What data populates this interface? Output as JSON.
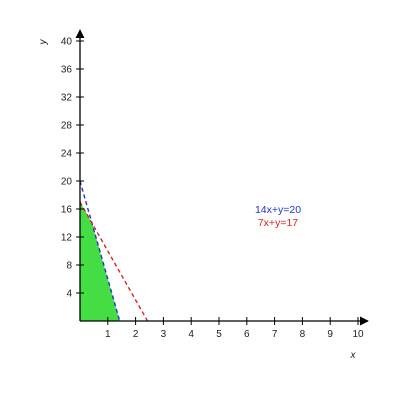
{
  "chart_data": {
    "type": "line",
    "xlabel": "x",
    "ylabel": "y",
    "xlim": [
      0,
      10
    ],
    "ylim": [
      0,
      40
    ],
    "x_ticks": [
      "1",
      "2",
      "3",
      "4",
      "5",
      "6",
      "7",
      "8",
      "9",
      "10"
    ],
    "y_ticks": [
      "4",
      "8",
      "12",
      "16",
      "20",
      "24",
      "28",
      "32",
      "36",
      "40"
    ],
    "grid": false,
    "legend_placement": "center-right",
    "series": [
      {
        "name": "14x+y=20",
        "color": "#2233cc",
        "style": "dashed",
        "points": [
          [
            0,
            20
          ],
          [
            1.4286,
            0
          ]
        ]
      },
      {
        "name": "7x+y=17",
        "color": "#dd2222",
        "style": "dashed",
        "points": [
          [
            0,
            17
          ],
          [
            2.4286,
            0
          ]
        ]
      }
    ],
    "feasible_region": {
      "color": "#44dd44",
      "vertices": [
        [
          0,
          0
        ],
        [
          0,
          17
        ],
        [
          0.4286,
          14
        ],
        [
          1.4286,
          0
        ]
      ]
    }
  }
}
